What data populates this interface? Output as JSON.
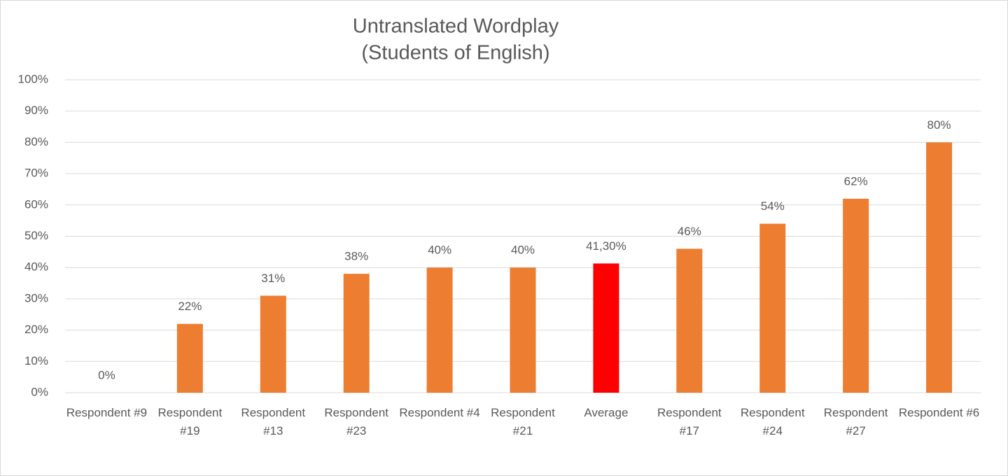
{
  "chart_data": {
    "type": "bar",
    "title": "Untranslated Wordplay",
    "subtitle": "(Students of English)",
    "categories": [
      "Respondent #9",
      "Respondent #19",
      "Respondent #13",
      "Respondent #23",
      "Respondent #4",
      "Respondent #21",
      "Average",
      "Respondent #17",
      "Respondent #24",
      "Respondent #27",
      "Respondent #6"
    ],
    "values": [
      0,
      22,
      31,
      38,
      40,
      40,
      41.3,
      46,
      54,
      62,
      80
    ],
    "value_labels": [
      "0%",
      "22%",
      "31%",
      "38%",
      "40%",
      "40%",
      "41,30%",
      "46%",
      "54%",
      "62%",
      "80%"
    ],
    "colors": [
      "#ed7d31",
      "#ed7d31",
      "#ed7d31",
      "#ed7d31",
      "#ed7d31",
      "#ed7d31",
      "#ff0000",
      "#ed7d31",
      "#ed7d31",
      "#ed7d31",
      "#ed7d31"
    ],
    "ylim": [
      0,
      100
    ],
    "yticks": [
      {
        "value": 0,
        "label": "0%"
      },
      {
        "value": 10,
        "label": "10%"
      },
      {
        "value": 20,
        "label": "20%"
      },
      {
        "value": 30,
        "label": "30%"
      },
      {
        "value": 40,
        "label": "40%"
      },
      {
        "value": 50,
        "label": "50%"
      },
      {
        "value": 60,
        "label": "60%"
      },
      {
        "value": 70,
        "label": "70%"
      },
      {
        "value": 80,
        "label": "80%"
      },
      {
        "value": 90,
        "label": "90%"
      },
      {
        "value": 100,
        "label": "100%"
      }
    ],
    "grid": true
  }
}
